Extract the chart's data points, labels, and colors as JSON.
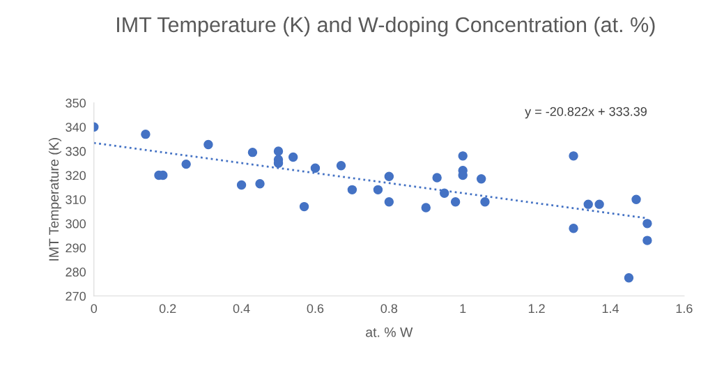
{
  "chart_data": {
    "type": "scatter",
    "title": "IMT Temperature (K) and W-doping Concentration (at. %)",
    "xlabel": "at. % W",
    "ylabel": "IMT Temperature (K)",
    "series": [
      {
        "color": "#4472c4",
        "marker": "circle",
        "x": [
          0,
          0.14,
          0.176,
          0.187,
          0.25,
          0.31,
          0.4,
          0.43,
          0.45,
          0.5,
          0.5,
          0.5,
          0.54,
          0.57,
          0.6,
          0.67,
          0.7,
          0.77,
          0.8,
          0.8,
          0.9,
          0.93,
          0.95,
          0.98,
          1.0,
          1.0,
          1.0,
          1.05,
          1.06,
          1.3,
          1.3,
          1.34,
          1.37,
          1.45,
          1.47,
          1.5,
          1.5
        ],
        "values": [
          340,
          337,
          320,
          320,
          324.6,
          332.7,
          316,
          329.5,
          316.5,
          330,
          326.5,
          325,
          327.5,
          307,
          323,
          324,
          314,
          314,
          319.5,
          309,
          306.6,
          319,
          312.6,
          309,
          328,
          322,
          320,
          318.5,
          309,
          328,
          298,
          308,
          308,
          277.5,
          310,
          300,
          293
        ]
      },
      {
        "type": "line",
        "color": "#4472c4",
        "line_style": "dotted",
        "marker": "none",
        "x": [
          0,
          1.5
        ],
        "values": [
          333.4,
          302.2
        ]
      }
    ],
    "annotations": [
      "y = -20.822x + 333.39"
    ],
    "xlim": [
      0,
      1.6
    ],
    "xticks": [
      0,
      0.2,
      0.4,
      0.6,
      0.8,
      1,
      1.2,
      1.4,
      1.6
    ],
    "ylim": [
      270,
      350
    ],
    "yticks": [
      270,
      280,
      290,
      300,
      310,
      320,
      330,
      340,
      350
    ],
    "grid": false
  }
}
